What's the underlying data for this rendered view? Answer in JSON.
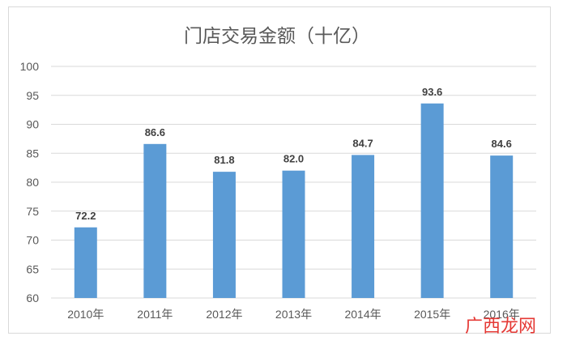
{
  "chart_data": {
    "type": "bar",
    "title": "门店交易金额（十亿）",
    "categories": [
      "2010年",
      "2011年",
      "2012年",
      "2013年",
      "2014年",
      "2015年",
      "2016年"
    ],
    "values": [
      72.2,
      86.6,
      81.8,
      82.0,
      84.7,
      93.6,
      84.6
    ],
    "data_labels": [
      "72.2",
      "86.6",
      "81.8",
      "82.0",
      "84.7",
      "93.6",
      "84.6"
    ],
    "yticks": [
      "60",
      "65",
      "70",
      "75",
      "80",
      "85",
      "90",
      "95",
      "100"
    ],
    "ylim": [
      60,
      100
    ],
    "xlabel": "",
    "ylabel": "",
    "grid": true,
    "legend": "none",
    "bar_color": "#5b9bd5",
    "grid_color": "#d9d9d9"
  },
  "watermark": {
    "text": "广西龙网",
    "color": "#e53935"
  }
}
